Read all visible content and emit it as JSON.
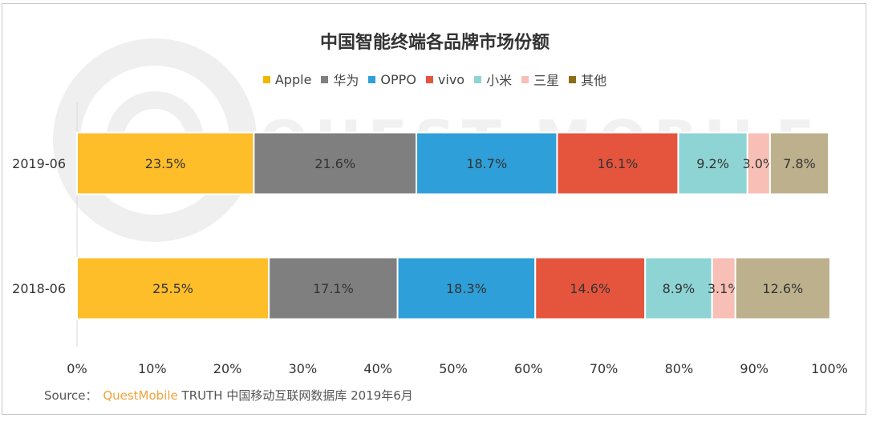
{
  "chart_data": {
    "type": "bar",
    "orientation": "horizontal",
    "stacked": true,
    "title": "中国智能终端各品牌市场份额",
    "categories": [
      "2019-06",
      "2018-06"
    ],
    "series": [
      {
        "name": "Apple",
        "color": "#FDBE2A",
        "values": [
          23.5,
          25.5
        ],
        "labels": [
          "23.5%",
          "25.5%"
        ]
      },
      {
        "name": "华为",
        "color": "#7F7F7F",
        "values": [
          21.6,
          17.1
        ],
        "labels": [
          "21.6%",
          "17.1%"
        ]
      },
      {
        "name": "OPPO",
        "color": "#2E9FD8",
        "values": [
          18.7,
          18.3
        ],
        "labels": [
          "18.7%",
          "18.3%"
        ]
      },
      {
        "name": "vivo",
        "color": "#E5553E",
        "values": [
          16.1,
          14.6
        ],
        "labels": [
          "16.1%",
          "14.6%"
        ]
      },
      {
        "name": "小米",
        "color": "#8ED4D4",
        "values": [
          9.2,
          8.9
        ],
        "labels": [
          "9.2%",
          "8.9%"
        ]
      },
      {
        "name": "三星",
        "color": "#F7BFB5",
        "values": [
          3.0,
          3.1
        ],
        "labels": [
          "3.0%",
          "3.1%"
        ]
      },
      {
        "name": "其他",
        "color": "#BCB18C",
        "values": [
          7.8,
          12.6
        ],
        "labels": [
          "7.8%",
          "12.6%"
        ]
      }
    ],
    "xlim": [
      0,
      100
    ],
    "xticks": [
      "0%",
      "10%",
      "20%",
      "30%",
      "40%",
      "50%",
      "60%",
      "70%",
      "80%",
      "90%",
      "100%"
    ],
    "legend_position": "top",
    "legend_marker_colors": [
      "#F1B800",
      "#7F7F7F",
      "#2E9FD8",
      "#E5553E",
      "#8ED4D4",
      "#F7BFB5",
      "#8B6E1A"
    ],
    "grid": false
  },
  "source": {
    "prefix": "Source：",
    "brand": "QuestMobile",
    "rest": " TRUTH 中国移动互联网数据库 2019年6月"
  }
}
